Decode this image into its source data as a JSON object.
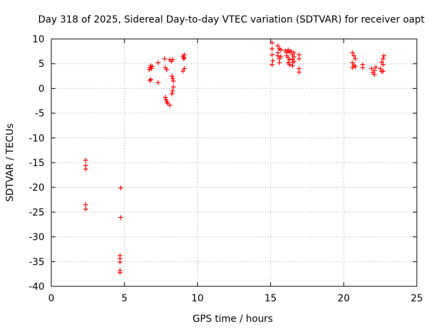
{
  "chart_data": {
    "type": "scatter",
    "title": "Day 318 of 2025, Sidereal Day-to-day VTEC variation (SDTVAR) for receiver oapt",
    "xlabel": "GPS time / hours",
    "ylabel": "SDTVAR / TECUs",
    "xlim": [
      0,
      25
    ],
    "ylim": [
      -40,
      10
    ],
    "xticks": [
      0,
      5,
      10,
      15,
      20,
      25
    ],
    "xtick_labels": [
      "0",
      "5",
      "10",
      "15",
      "20",
      "25"
    ],
    "yticks": [
      10,
      5,
      0,
      -5,
      -10,
      -15,
      -20,
      -25,
      -30,
      -35,
      -40
    ],
    "ytick_labels": [
      "10",
      "5",
      "0",
      "-5",
      "-10",
      "-15",
      "-20",
      "-25",
      "-30",
      "-35",
      "-40"
    ],
    "grid": true,
    "marker": "+",
    "color": "#ff0000",
    "series": [
      {
        "name": "SDTVAR",
        "points": [
          [
            2.35,
            -14.5
          ],
          [
            2.35,
            -15.6
          ],
          [
            2.35,
            -16.3
          ],
          [
            2.35,
            -23.5
          ],
          [
            2.35,
            -24.4
          ],
          [
            4.75,
            -20.1
          ],
          [
            4.75,
            -26.1
          ],
          [
            4.7,
            -33.8
          ],
          [
            4.7,
            -34.4
          ],
          [
            4.7,
            -35.1
          ],
          [
            4.7,
            -36.8
          ],
          [
            4.7,
            -37.2
          ],
          [
            6.7,
            3.8
          ],
          [
            6.75,
            4.2
          ],
          [
            6.8,
            4.6
          ],
          [
            6.85,
            4.0
          ],
          [
            6.9,
            4.4
          ],
          [
            6.75,
            1.6
          ],
          [
            6.8,
            1.8
          ],
          [
            7.3,
            5.2
          ],
          [
            7.3,
            1.2
          ],
          [
            7.75,
            6.0
          ],
          [
            7.8,
            4.2
          ],
          [
            7.9,
            3.8
          ],
          [
            7.8,
            -1.8
          ],
          [
            7.85,
            -2.3
          ],
          [
            7.9,
            -2.7
          ],
          [
            7.95,
            -3.0
          ],
          [
            8.1,
            -3.4
          ],
          [
            8.1,
            5.8
          ],
          [
            8.2,
            5.5
          ],
          [
            8.3,
            5.8
          ],
          [
            8.25,
            2.5
          ],
          [
            8.3,
            2.0
          ],
          [
            8.35,
            1.5
          ],
          [
            8.35,
            0.3
          ],
          [
            8.3,
            -0.5
          ],
          [
            8.25,
            -1.1
          ],
          [
            9.0,
            6.5
          ],
          [
            9.05,
            6.0
          ],
          [
            9.1,
            6.8
          ],
          [
            9.1,
            6.2
          ],
          [
            9.0,
            3.5
          ],
          [
            9.1,
            4.0
          ],
          [
            15.1,
            9.2
          ],
          [
            15.1,
            8.0
          ],
          [
            15.1,
            6.8
          ],
          [
            15.15,
            5.6
          ],
          [
            15.1,
            4.8
          ],
          [
            15.5,
            8.6
          ],
          [
            15.5,
            7.2
          ],
          [
            15.6,
            6.0
          ],
          [
            15.6,
            8.0
          ],
          [
            15.7,
            7.8
          ],
          [
            15.5,
            6.6
          ],
          [
            15.6,
            5.2
          ],
          [
            15.7,
            6.4
          ],
          [
            16.0,
            7.6
          ],
          [
            16.1,
            7.2
          ],
          [
            16.1,
            6.6
          ],
          [
            16.2,
            7.8
          ],
          [
            16.2,
            6.2
          ],
          [
            16.3,
            7.4
          ],
          [
            16.3,
            5.8
          ],
          [
            16.2,
            5.2
          ],
          [
            16.3,
            4.8
          ],
          [
            16.4,
            7.5
          ],
          [
            16.5,
            6.8
          ],
          [
            16.5,
            5.9
          ],
          [
            16.6,
            6.4
          ],
          [
            16.5,
            5.2
          ],
          [
            16.5,
            4.6
          ],
          [
            16.6,
            7.2
          ],
          [
            16.6,
            5.5
          ],
          [
            16.95,
            6.8
          ],
          [
            16.95,
            6.0
          ],
          [
            16.95,
            4.0
          ],
          [
            16.95,
            3.3
          ],
          [
            20.6,
            7.2
          ],
          [
            20.7,
            6.6
          ],
          [
            20.8,
            6.0
          ],
          [
            20.6,
            5.2
          ],
          [
            20.7,
            4.7
          ],
          [
            20.6,
            4.2
          ],
          [
            20.8,
            4.4
          ],
          [
            21.3,
            4.8
          ],
          [
            21.3,
            4.2
          ],
          [
            21.9,
            4.0
          ],
          [
            22.0,
            3.2
          ],
          [
            22.1,
            2.8
          ],
          [
            22.2,
            4.3
          ],
          [
            22.1,
            3.6
          ],
          [
            22.5,
            4.0
          ],
          [
            22.6,
            3.4
          ],
          [
            22.6,
            5.3
          ],
          [
            22.7,
            6.0
          ],
          [
            22.75,
            6.6
          ],
          [
            22.7,
            4.8
          ],
          [
            22.7,
            3.5
          ]
        ]
      }
    ]
  }
}
